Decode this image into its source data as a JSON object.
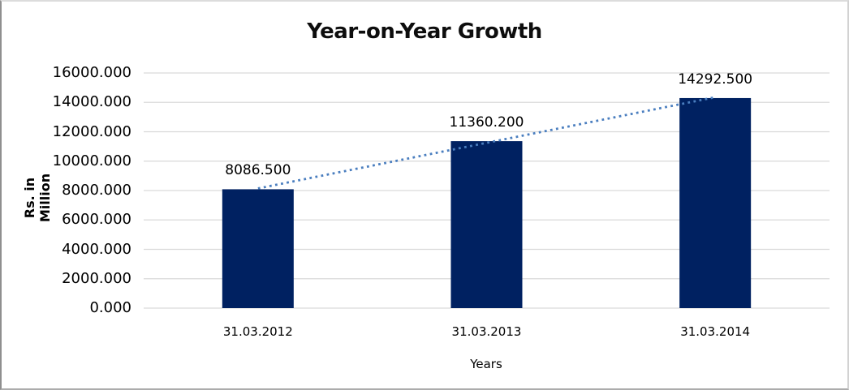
{
  "chart_data": {
    "type": "bar",
    "title": "Year-on-Year Growth",
    "xlabel": "Years",
    "ylabel": "Rs. in Million",
    "categories": [
      "31.03.2012",
      "31.03.2013",
      "31.03.2014"
    ],
    "values": [
      8086.5,
      11360.2,
      14292.5
    ],
    "data_labels": [
      "8086.500",
      "11360.200",
      "14292.500"
    ],
    "y_tick_labels": [
      "0.000",
      "2000.000",
      "4000.000",
      "6000.000",
      "8000.000",
      "10000.000",
      "12000.000",
      "14000.000",
      "16000.000"
    ],
    "y_tick_values": [
      0,
      2000,
      4000,
      6000,
      8000,
      10000,
      12000,
      14000,
      16000
    ],
    "ylim": [
      0,
      16000
    ],
    "grid": true,
    "legend": "none",
    "trendline": "linear dotted",
    "colors": {
      "bar": "#002161",
      "trendline": "#4A7EBF",
      "gridline": "#D9D9D9",
      "text": "#000000"
    }
  }
}
